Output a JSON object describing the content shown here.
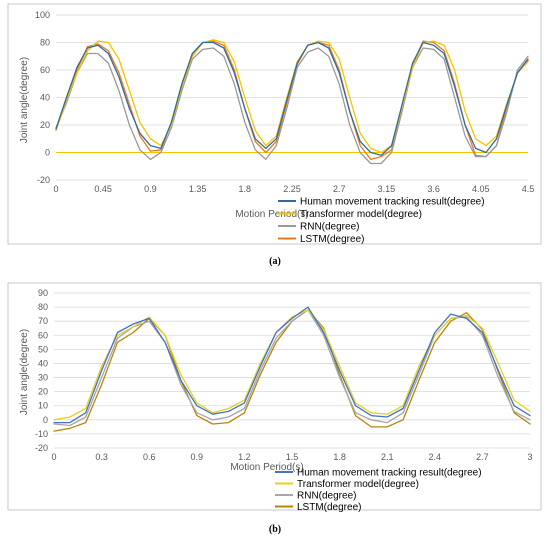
{
  "chart_data": [
    {
      "type": "line",
      "caption": "(a)",
      "xlabel": "Motion Period(s)",
      "ylabel": "Joint angle(degree)",
      "xlim": [
        0,
        4.5
      ],
      "ylim": [
        -20,
        100
      ],
      "xticks": [
        "0",
        "0.45",
        "0.9",
        "1.35",
        "1.8",
        "2.25",
        "2.7",
        "3.15",
        "3.6",
        "4.05",
        "4.5"
      ],
      "yticks": [
        "-20",
        "0",
        "20",
        "40",
        "60",
        "80",
        "100"
      ],
      "grid": "horizontal",
      "legend_position": "bottom-right",
      "series": [
        {
          "name": "Human movement tracking result(degree)",
          "color": "#2e6da4",
          "x": [
            0,
            0.1,
            0.2,
            0.3,
            0.4,
            0.5,
            0.6,
            0.7,
            0.8,
            0.9,
            1.0,
            1.1,
            1.2,
            1.3,
            1.4,
            1.5,
            1.6,
            1.7,
            1.8,
            1.9,
            2.0,
            2.1,
            2.2,
            2.3,
            2.4,
            2.5,
            2.6,
            2.7,
            2.8,
            2.9,
            3.0,
            3.1,
            3.2,
            3.3,
            3.4,
            3.5,
            3.6,
            3.7,
            3.8,
            3.9,
            4.0,
            4.1,
            4.2,
            4.3,
            4.4,
            4.5
          ],
          "y": [
            17,
            40,
            62,
            76,
            78,
            72,
            55,
            32,
            14,
            5,
            3,
            22,
            50,
            72,
            80,
            80,
            76,
            58,
            32,
            10,
            3,
            10,
            38,
            65,
            78,
            80,
            76,
            58,
            30,
            8,
            0,
            -2,
            5,
            35,
            65,
            80,
            78,
            72,
            48,
            20,
            3,
            0,
            10,
            35,
            58,
            68
          ]
        },
        {
          "name": "Transformer model(degree)",
          "color": "#f2c500",
          "x": [
            0,
            0.1,
            0.2,
            0.3,
            0.4,
            0.5,
            0.6,
            0.7,
            0.8,
            0.9,
            1.0,
            1.1,
            1.2,
            1.3,
            1.4,
            1.5,
            1.6,
            1.7,
            1.8,
            1.9,
            2.0,
            2.1,
            2.2,
            2.3,
            2.4,
            2.5,
            2.6,
            2.7,
            2.8,
            2.9,
            3.0,
            3.1,
            3.2,
            3.3,
            3.4,
            3.5,
            3.6,
            3.7,
            3.8,
            3.9,
            4.0,
            4.1,
            4.2,
            4.3,
            4.4,
            4.5
          ],
          "y": [
            16,
            38,
            58,
            74,
            81,
            80,
            68,
            45,
            22,
            10,
            5,
            20,
            48,
            70,
            80,
            82,
            80,
            66,
            40,
            16,
            5,
            12,
            40,
            66,
            78,
            81,
            80,
            68,
            40,
            14,
            3,
            0,
            5,
            33,
            62,
            80,
            81,
            78,
            60,
            30,
            10,
            5,
            12,
            36,
            58,
            66
          ]
        },
        {
          "name": "RNN(degree)",
          "color": "#999999",
          "x": [
            0,
            0.1,
            0.2,
            0.3,
            0.4,
            0.5,
            0.6,
            0.7,
            0.8,
            0.9,
            1.0,
            1.1,
            1.2,
            1.3,
            1.4,
            1.5,
            1.6,
            1.7,
            1.8,
            1.9,
            2.0,
            2.1,
            2.2,
            2.3,
            2.4,
            2.5,
            2.6,
            2.7,
            2.8,
            2.9,
            3.0,
            3.1,
            3.2,
            3.3,
            3.4,
            3.5,
            3.6,
            3.7,
            3.8,
            3.9,
            4.0,
            4.1,
            4.2,
            4.3,
            4.4,
            4.5
          ],
          "y": [
            18,
            36,
            58,
            72,
            72,
            65,
            45,
            20,
            2,
            -5,
            0,
            18,
            45,
            68,
            75,
            76,
            70,
            50,
            22,
            2,
            -5,
            5,
            32,
            62,
            73,
            76,
            70,
            50,
            20,
            0,
            -8,
            -8,
            0,
            30,
            62,
            76,
            75,
            68,
            40,
            12,
            -3,
            -3,
            5,
            30,
            60,
            70
          ]
        },
        {
          "name": "LSTM(degree)",
          "color": "#f07820",
          "x": [
            0,
            0.1,
            0.2,
            0.3,
            0.4,
            0.5,
            0.6,
            0.7,
            0.8,
            0.9,
            1.0,
            1.1,
            1.2,
            1.3,
            1.4,
            1.5,
            1.6,
            1.7,
            1.8,
            1.9,
            2.0,
            2.1,
            2.2,
            2.3,
            2.4,
            2.5,
            2.6,
            2.7,
            2.8,
            2.9,
            3.0,
            3.1,
            3.2,
            3.3,
            3.4,
            3.5,
            3.6,
            3.7,
            3.8,
            3.9,
            4.0,
            4.1,
            4.2,
            4.3,
            4.4,
            4.5
          ],
          "y": [
            17,
            40,
            60,
            77,
            79,
            74,
            58,
            35,
            12,
            1,
            2,
            22,
            50,
            72,
            80,
            81,
            78,
            60,
            32,
            8,
            0,
            8,
            36,
            64,
            78,
            80,
            78,
            60,
            30,
            5,
            -5,
            -3,
            2,
            34,
            64,
            81,
            80,
            74,
            50,
            20,
            -2,
            -3,
            5,
            34,
            58,
            67
          ]
        }
      ]
    },
    {
      "type": "line",
      "caption": "(b)",
      "xlabel": "Motion Period(s)",
      "ylabel": "Joint angle(degree)",
      "xlim": [
        0,
        3
      ],
      "ylim": [
        -20,
        90
      ],
      "xticks": [
        "0",
        "0.3",
        "0.6",
        "0.9",
        "1.2",
        "1.5",
        "1.8",
        "2.1",
        "2.4",
        "2.7",
        "3"
      ],
      "yticks": [
        "-20",
        "-10",
        "0",
        "10",
        "20",
        "30",
        "40",
        "50",
        "60",
        "70",
        "80",
        "90"
      ],
      "grid": "horizontal",
      "legend_position": "bottom-right",
      "series": [
        {
          "name": "Human movement tracking result(degree)",
          "color": "#4472c4",
          "x": [
            0,
            0.1,
            0.2,
            0.3,
            0.4,
            0.5,
            0.6,
            0.7,
            0.8,
            0.9,
            1.0,
            1.1,
            1.2,
            1.3,
            1.4,
            1.5,
            1.6,
            1.7,
            1.8,
            1.9,
            2.0,
            2.1,
            2.2,
            2.3,
            2.4,
            2.5,
            2.6,
            2.7,
            2.8,
            2.9,
            3.0
          ],
          "y": [
            -2,
            -2,
            5,
            35,
            62,
            68,
            72,
            55,
            28,
            10,
            4,
            6,
            12,
            38,
            62,
            72,
            80,
            62,
            35,
            10,
            3,
            2,
            8,
            35,
            62,
            75,
            72,
            62,
            35,
            10,
            3
          ]
        },
        {
          "name": "Transformer model(degree)",
          "color": "#e6d21e",
          "x": [
            0,
            0.1,
            0.2,
            0.3,
            0.4,
            0.5,
            0.6,
            0.7,
            0.8,
            0.9,
            1.0,
            1.1,
            1.2,
            1.3,
            1.4,
            1.5,
            1.6,
            1.7,
            1.8,
            1.9,
            2.0,
            2.1,
            2.2,
            2.3,
            2.4,
            2.5,
            2.6,
            2.7,
            2.8,
            2.9,
            3.0
          ],
          "y": [
            0,
            2,
            8,
            38,
            60,
            66,
            73,
            60,
            32,
            12,
            5,
            8,
            14,
            40,
            62,
            73,
            78,
            64,
            38,
            12,
            5,
            4,
            10,
            38,
            60,
            72,
            74,
            65,
            40,
            14,
            6
          ]
        },
        {
          "name": "RNN(degree)",
          "color": "#a6a6a6",
          "x": [
            0,
            0.1,
            0.2,
            0.3,
            0.4,
            0.5,
            0.6,
            0.7,
            0.8,
            0.9,
            1.0,
            1.1,
            1.2,
            1.3,
            1.4,
            1.5,
            1.6,
            1.7,
            1.8,
            1.9,
            2.0,
            2.1,
            2.2,
            2.3,
            2.4,
            2.5,
            2.6,
            2.7,
            2.8,
            2.9,
            3.0
          ],
          "y": [
            -3,
            -4,
            2,
            30,
            58,
            66,
            70,
            55,
            25,
            5,
            0,
            2,
            8,
            35,
            58,
            70,
            78,
            60,
            30,
            5,
            0,
            -2,
            5,
            32,
            60,
            72,
            73,
            60,
            30,
            6,
            0
          ]
        },
        {
          "name": "LSTM(degree)",
          "color": "#b8860b",
          "x": [
            0,
            0.1,
            0.2,
            0.3,
            0.4,
            0.5,
            0.6,
            0.7,
            0.8,
            0.9,
            1.0,
            1.1,
            1.2,
            1.3,
            1.4,
            1.5,
            1.6,
            1.7,
            1.8,
            1.9,
            2.0,
            2.1,
            2.2,
            2.3,
            2.4,
            2.5,
            2.6,
            2.7,
            2.8,
            2.9,
            3.0
          ],
          "y": [
            -8,
            -6,
            -2,
            25,
            55,
            62,
            72,
            60,
            28,
            3,
            -3,
            -2,
            5,
            32,
            55,
            70,
            78,
            65,
            32,
            3,
            -5,
            -5,
            0,
            28,
            55,
            70,
            76,
            64,
            34,
            5,
            -3
          ]
        }
      ]
    }
  ]
}
